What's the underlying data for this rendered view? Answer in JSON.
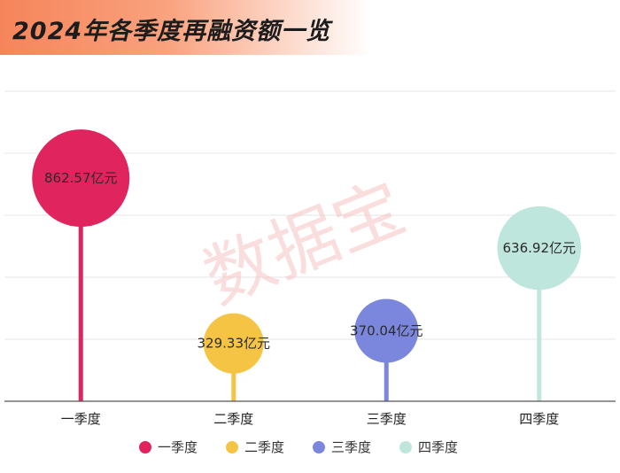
{
  "title": "2024年各季度再融资额一览",
  "watermark": "数据宝",
  "chart_data": {
    "type": "lollipop",
    "title": "2024年各季度再融资额一览",
    "categories": [
      "一季度",
      "二季度",
      "三季度",
      "四季度"
    ],
    "values": [
      862.57,
      329.33,
      370.04,
      636.92
    ],
    "value_labels": [
      "862.57亿元",
      "329.33亿元",
      "370.04亿元",
      "636.92亿元"
    ],
    "colors": [
      "#e0245e",
      "#f6c445",
      "#7b87dc",
      "#bfe6dc"
    ],
    "legend": [
      "一季度",
      "二季度",
      "三季度",
      "四季度"
    ],
    "legend_position": "bottom",
    "ylim": [
      0,
      1000
    ],
    "grid": true
  }
}
